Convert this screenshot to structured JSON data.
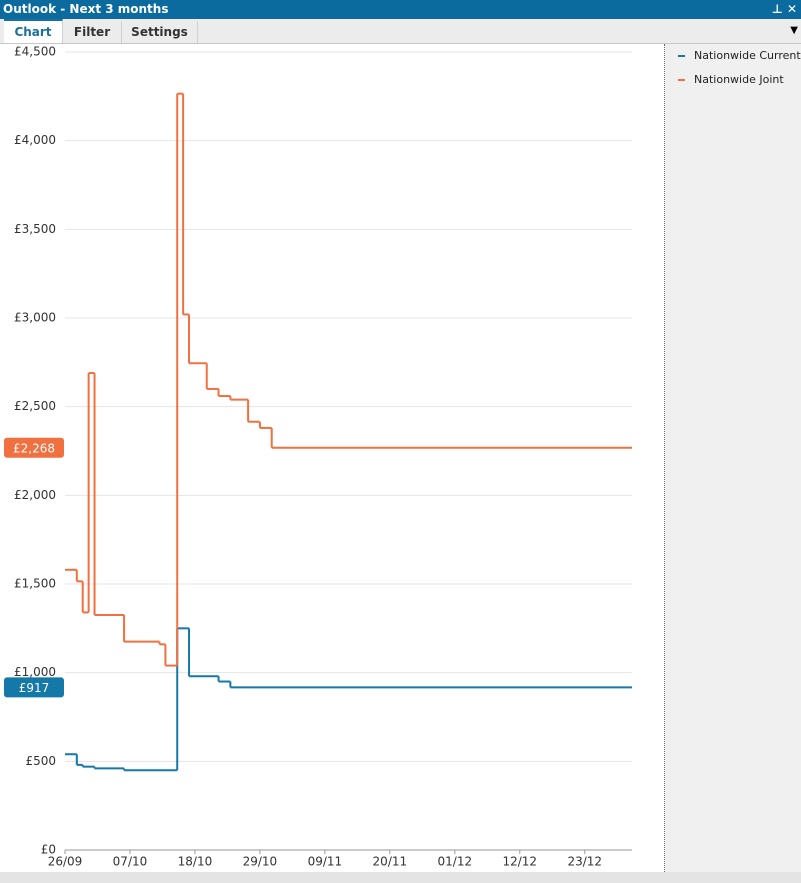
{
  "window": {
    "title": "Outlook - Next 3 months",
    "tabs": [
      "Chart",
      "Filter",
      "Settings"
    ]
  },
  "chart_data": {
    "type": "line",
    "step": true,
    "xlim": [
      "26/09",
      "31/12"
    ],
    "xticks": [
      "26/09",
      "07/10",
      "18/10",
      "29/10",
      "09/11",
      "20/11",
      "01/12",
      "12/12",
      "23/12"
    ],
    "ylim": [
      0,
      4500
    ],
    "yticks": [
      {
        "value": 0,
        "label": "£0"
      },
      {
        "value": 500,
        "label": "£500"
      },
      {
        "value": 1000,
        "label": "£1,000"
      },
      {
        "value": 1500,
        "label": "£1,500"
      },
      {
        "value": 2000,
        "label": "£2,000"
      },
      {
        "value": 2500,
        "label": "£2,500"
      },
      {
        "value": 3000,
        "label": "£3,000"
      },
      {
        "value": 3500,
        "label": "£3,500"
      },
      {
        "value": 4000,
        "label": "£4,000"
      },
      {
        "value": 4500,
        "label": "£4,500"
      }
    ],
    "grid": true,
    "series": [
      {
        "name": "Nationwide Current",
        "color": "#1478a8",
        "current_label": "£917",
        "x": [
          "26/09",
          "28/09",
          "29/09",
          "01/10",
          "06/10",
          "15/10",
          "17/10",
          "22/10",
          "24/10"
        ],
        "values": [
          540,
          480,
          470,
          460,
          450,
          1250,
          980,
          950,
          917
        ]
      },
      {
        "name": "Nationwide Joint",
        "color": "#f07040",
        "current_label": "£2,268",
        "x": [
          "26/09",
          "28/09",
          "29/09",
          "30/09",
          "01/10",
          "06/10",
          "12/10",
          "13/10",
          "15/10",
          "16/10",
          "17/10",
          "20/10",
          "22/10",
          "24/10",
          "27/10",
          "29/10",
          "31/10"
        ],
        "values": [
          1580,
          1515,
          1340,
          2690,
          1325,
          1175,
          1160,
          1040,
          4265,
          3020,
          2745,
          2600,
          2560,
          2540,
          2415,
          2380,
          2268
        ]
      }
    ]
  }
}
